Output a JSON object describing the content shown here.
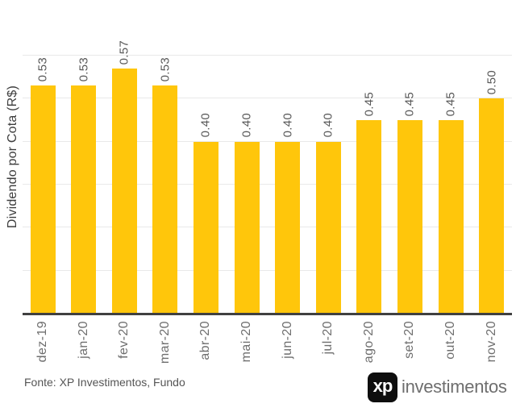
{
  "chart_data": {
    "type": "bar",
    "title": "",
    "xlabel": "",
    "ylabel": "Dividendo por Cota (R$)",
    "categories": [
      "dez-19",
      "jan-20",
      "fev-20",
      "mar-20",
      "abr-20",
      "mai-20",
      "jun-20",
      "jul-20",
      "ago-20",
      "set-20",
      "out-20",
      "nov-20"
    ],
    "values": [
      0.53,
      0.53,
      0.57,
      0.53,
      0.4,
      0.4,
      0.4,
      0.4,
      0.45,
      0.45,
      0.45,
      0.5
    ],
    "value_labels": [
      "0.53",
      "0.53",
      "0.57",
      "0.53",
      "0.40",
      "0.40",
      "0.40",
      "0.40",
      "0.45",
      "0.45",
      "0.45",
      "0.50"
    ],
    "ylim": [
      0,
      0.6
    ],
    "gridline_step": 0.1,
    "grid": "horizontal",
    "legend_position": "none",
    "bar_color": "#FFC60B",
    "axis_line_color": "#404040",
    "gridline_color": "#E9E9E9"
  },
  "footer": {
    "source": "Fonte: XP Investimentos, Fundo",
    "logo": {
      "mark": "xp",
      "word": "investimentos"
    }
  }
}
